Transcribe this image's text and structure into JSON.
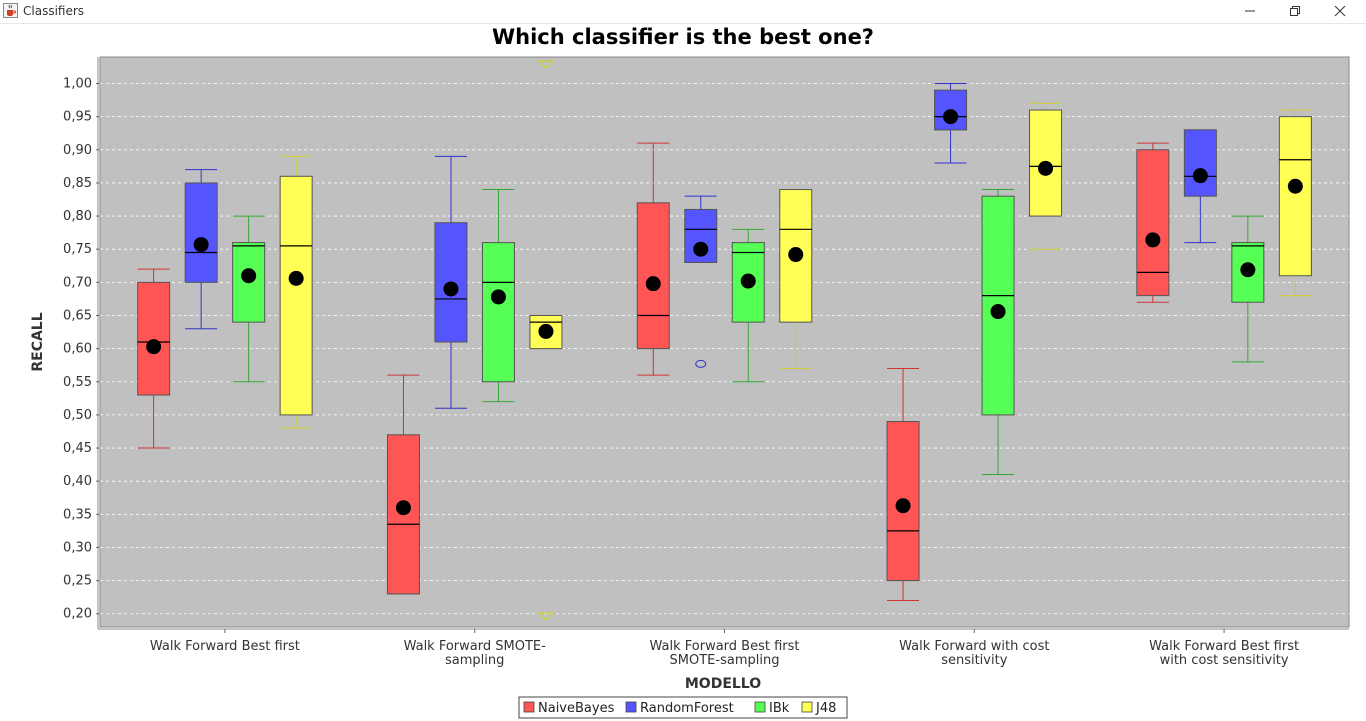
{
  "window": {
    "title": "Classifiers",
    "icon": "java-cup-icon",
    "controls": [
      "minimize-icon",
      "maximize-icon",
      "close-icon"
    ]
  },
  "chart_data": {
    "type": "boxplot",
    "title": "Which classifier is the best one?",
    "xlabel": "MODELLO",
    "ylabel": "RECALL",
    "ylim": [
      0.18,
      1.04
    ],
    "yticks": [
      0.2,
      0.25,
      0.3,
      0.35,
      0.4,
      0.45,
      0.5,
      0.55,
      0.6,
      0.65,
      0.7,
      0.75,
      0.8,
      0.85,
      0.9,
      0.95,
      1.0
    ],
    "ytick_labels": [
      "0,20",
      "0,25",
      "0,30",
      "0,35",
      "0,40",
      "0,45",
      "0,50",
      "0,55",
      "0,60",
      "0,65",
      "0,70",
      "0,75",
      "0,80",
      "0,85",
      "0,90",
      "0,95",
      "1,00"
    ],
    "grid": true,
    "plot_background": "#c0c0c0",
    "legend_position": "bottom",
    "categories": [
      [
        "Walk Forward Best first"
      ],
      [
        "Walk Forward SMOTE-",
        "sampling"
      ],
      [
        "Walk Forward Best first",
        "SMOTE-sampling"
      ],
      [
        "Walk Forward with cost",
        "sensitivity"
      ],
      [
        "Walk Forward Best first",
        "with cost sensitivity"
      ]
    ],
    "series": [
      {
        "name": "NaiveBayes",
        "color": "#ff5555",
        "line": "#cc3333",
        "boxes": [
          {
            "whisker_low": 0.45,
            "q1": 0.53,
            "median": 0.61,
            "q3": 0.7,
            "whisker_high": 0.72,
            "mean": 0.603
          },
          {
            "whisker_low": 0.23,
            "q1": 0.23,
            "median": 0.335,
            "q3": 0.47,
            "whisker_high": 0.56,
            "mean": 0.36
          },
          {
            "whisker_low": 0.56,
            "q1": 0.6,
            "median": 0.65,
            "q3": 0.82,
            "whisker_high": 0.91,
            "mean": 0.698
          },
          {
            "whisker_low": 0.22,
            "q1": 0.25,
            "median": 0.325,
            "q3": 0.49,
            "whisker_high": 0.57,
            "mean": 0.363
          },
          {
            "whisker_low": 0.67,
            "q1": 0.68,
            "median": 0.715,
            "q3": 0.9,
            "whisker_high": 0.91,
            "mean": 0.764
          }
        ]
      },
      {
        "name": "RandomForest",
        "color": "#5555ff",
        "line": "#3333cc",
        "boxes": [
          {
            "whisker_low": 0.63,
            "q1": 0.7,
            "median": 0.745,
            "q3": 0.85,
            "whisker_high": 0.87,
            "mean": 0.757
          },
          {
            "whisker_low": 0.51,
            "q1": 0.61,
            "median": 0.675,
            "q3": 0.79,
            "whisker_high": 0.89,
            "mean": 0.69
          },
          {
            "whisker_low": 0.73,
            "q1": 0.73,
            "median": 0.78,
            "q3": 0.81,
            "whisker_high": 0.83,
            "mean": 0.75,
            "outliers": [
              0.577
            ]
          },
          {
            "whisker_low": 0.88,
            "q1": 0.93,
            "median": 0.95,
            "q3": 0.99,
            "whisker_high": 1.0,
            "mean": 0.95
          },
          {
            "whisker_low": 0.76,
            "q1": 0.83,
            "median": 0.86,
            "q3": 0.93,
            "whisker_high": 0.93,
            "mean": 0.861
          }
        ]
      },
      {
        "name": "IBk",
        "color": "#55ff55",
        "line": "#33aa33",
        "boxes": [
          {
            "whisker_low": 0.55,
            "q1": 0.64,
            "median": 0.755,
            "q3": 0.76,
            "whisker_high": 0.8,
            "mean": 0.71
          },
          {
            "whisker_low": 0.52,
            "q1": 0.55,
            "median": 0.7,
            "q3": 0.76,
            "whisker_high": 0.84,
            "mean": 0.678
          },
          {
            "whisker_low": 0.55,
            "q1": 0.64,
            "median": 0.745,
            "q3": 0.76,
            "whisker_high": 0.78,
            "mean": 0.702
          },
          {
            "whisker_low": 0.41,
            "q1": 0.5,
            "median": 0.68,
            "q3": 0.83,
            "whisker_high": 0.84,
            "mean": 0.656
          },
          {
            "whisker_low": 0.58,
            "q1": 0.67,
            "median": 0.755,
            "q3": 0.76,
            "whisker_high": 0.8,
            "mean": 0.719
          }
        ]
      },
      {
        "name": "J48",
        "color": "#ffff55",
        "line": "#cccc33",
        "boxes": [
          {
            "whisker_low": 0.48,
            "q1": 0.5,
            "median": 0.755,
            "q3": 0.86,
            "whisker_high": 0.89,
            "mean": 0.706
          },
          {
            "whisker_low": 0.6,
            "q1": 0.6,
            "median": 0.64,
            "q3": 0.65,
            "whisker_high": 0.65,
            "mean": 0.626,
            "far_out_high": true,
            "far_out_low": true
          },
          {
            "whisker_low": 0.57,
            "q1": 0.64,
            "median": 0.78,
            "q3": 0.84,
            "whisker_high": 0.84,
            "mean": 0.742
          },
          {
            "whisker_low": 0.75,
            "q1": 0.8,
            "median": 0.875,
            "q3": 0.96,
            "whisker_high": 0.97,
            "mean": 0.872
          },
          {
            "whisker_low": 0.68,
            "q1": 0.71,
            "median": 0.885,
            "q3": 0.95,
            "whisker_high": 0.96,
            "mean": 0.845
          }
        ]
      }
    ]
  }
}
